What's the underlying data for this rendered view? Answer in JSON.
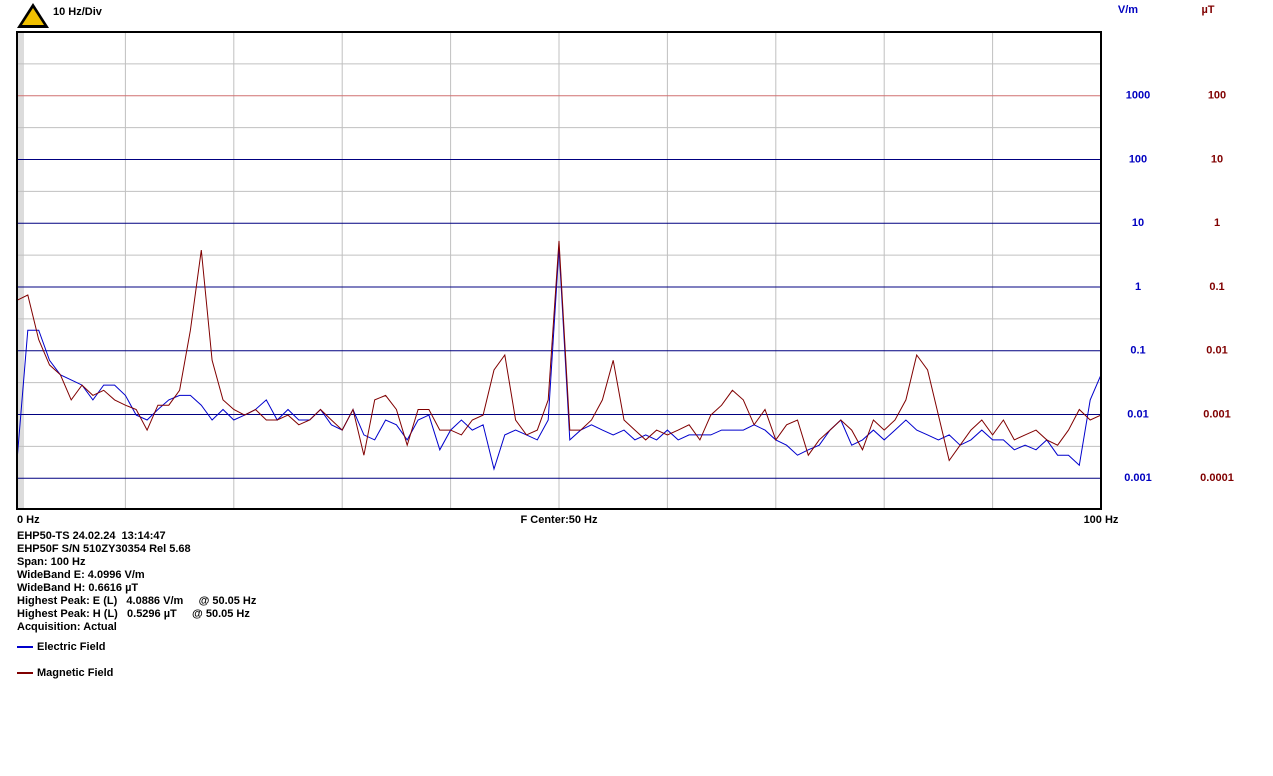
{
  "chart_data": {
    "type": "line",
    "title": "10 Hz/Div",
    "ylabel": "V/m",
    "y2label": "µT",
    "log_y": true,
    "xlim": [
      0,
      100
    ],
    "xticks": [
      {
        "value": 0,
        "label": "0 Hz"
      },
      {
        "value": 50,
        "label": "F Center:50 Hz"
      },
      {
        "value": 100,
        "label": "100 Hz"
      }
    ],
    "xgrid": [
      10,
      20,
      30,
      40,
      50,
      60,
      70,
      80,
      90
    ],
    "ylim": [
      0.00033,
      10000
    ],
    "yticks": [
      1000,
      100,
      10,
      1,
      0.1,
      0.01,
      0.001
    ],
    "y_minor_grid": [
      3162,
      316.2,
      31.62,
      3.162,
      0.3162,
      0.03162,
      0.003162
    ],
    "grid_colors": [
      "#d07070",
      "#000080",
      "#000080",
      "#000080",
      "#000080",
      "#000080",
      "#000080"
    ],
    "y2lim": [
      3.3e-05,
      1000
    ],
    "y2ticks": [
      100,
      10,
      1,
      0.1,
      0.01,
      0.001,
      0.0001
    ],
    "ytick_color": "#0000c0",
    "y2tick_color": "#800000",
    "x": [
      0,
      1,
      2,
      3,
      4,
      5,
      6,
      7,
      8,
      9,
      10,
      11,
      12,
      13,
      14,
      15,
      16,
      17,
      18,
      19,
      20,
      21,
      22,
      23,
      24,
      25,
      26,
      27,
      28,
      29,
      30,
      31,
      32,
      33,
      34,
      35,
      36,
      37,
      38,
      39,
      40,
      41,
      42,
      43,
      44,
      45,
      46,
      47,
      48,
      49,
      50,
      51,
      52,
      53,
      54,
      55,
      56,
      57,
      58,
      59,
      60,
      61,
      62,
      63,
      64,
      65,
      66,
      67,
      68,
      69,
      70,
      71,
      72,
      73,
      74,
      75,
      76,
      77,
      78,
      79,
      80,
      81,
      82,
      83,
      84,
      85,
      86,
      87,
      88,
      89,
      90,
      91,
      92,
      93,
      94,
      95,
      96,
      97,
      98,
      99,
      100
    ],
    "series": [
      {
        "name": "Electric Field",
        "color": "#0000cc",
        "values": [
          0.0019,
          0.21,
          0.21,
          0.071,
          0.042,
          0.035,
          0.029,
          0.017,
          0.029,
          0.029,
          0.02,
          0.0098,
          0.0082,
          0.012,
          0.017,
          0.02,
          0.02,
          0.014,
          0.0082,
          0.012,
          0.0082,
          0.0098,
          0.012,
          0.017,
          0.0082,
          0.012,
          0.0082,
          0.0082,
          0.012,
          0.0069,
          0.0057,
          0.012,
          0.0048,
          0.004,
          0.0082,
          0.0069,
          0.004,
          0.0082,
          0.0098,
          0.0028,
          0.0057,
          0.0082,
          0.0057,
          0.0069,
          0.0014,
          0.0048,
          0.0057,
          0.0048,
          0.004,
          0.0082,
          4.09,
          0.004,
          0.0057,
          0.0069,
          0.0057,
          0.0048,
          0.0057,
          0.004,
          0.0048,
          0.004,
          0.0057,
          0.004,
          0.0048,
          0.0048,
          0.0048,
          0.0057,
          0.0057,
          0.0057,
          0.0069,
          0.0057,
          0.004,
          0.0033,
          0.0023,
          0.0028,
          0.0033,
          0.0057,
          0.0082,
          0.0033,
          0.004,
          0.0057,
          0.004,
          0.0057,
          0.0082,
          0.0057,
          0.0048,
          0.004,
          0.0048,
          0.0033,
          0.004,
          0.0057,
          0.004,
          0.004,
          0.0028,
          0.0033,
          0.0028,
          0.004,
          0.0023,
          0.0023,
          0.0016,
          0.017,
          0.042
        ]
      },
      {
        "name": "Magnetic Field",
        "color": "#800000",
        "axis": "y2",
        "values": [
          0.062,
          0.075,
          0.015,
          0.006,
          0.0042,
          0.0017,
          0.0029,
          0.002,
          0.0024,
          0.0017,
          0.0014,
          0.0012,
          0.00057,
          0.0014,
          0.0014,
          0.0024,
          0.021,
          0.38,
          0.0071,
          0.0017,
          0.0012,
          0.00098,
          0.0012,
          0.00082,
          0.00082,
          0.00098,
          0.00069,
          0.00082,
          0.0012,
          0.00082,
          0.00057,
          0.0012,
          0.00023,
          0.0017,
          0.002,
          0.0012,
          0.00033,
          0.0012,
          0.0012,
          0.00057,
          0.00057,
          0.00048,
          0.00082,
          0.00098,
          0.005,
          0.0086,
          0.00082,
          0.00048,
          0.00057,
          0.0017,
          0.53,
          0.00057,
          0.00057,
          0.00082,
          0.0017,
          0.0071,
          0.00082,
          0.00057,
          0.0004,
          0.00057,
          0.00048,
          0.00057,
          0.00069,
          0.0004,
          0.00098,
          0.0014,
          0.0024,
          0.0017,
          0.00069,
          0.0012,
          0.0004,
          0.00069,
          0.00082,
          0.00023,
          0.0004,
          0.00057,
          0.00082,
          0.00057,
          0.00028,
          0.00082,
          0.00057,
          0.00082,
          0.0017,
          0.0086,
          0.005,
          0.00098,
          0.00019,
          0.00033,
          0.00057,
          0.00082,
          0.00048,
          0.00082,
          0.0004,
          0.00048,
          0.00057,
          0.0004,
          0.00033,
          0.00057,
          0.0012,
          0.00082,
          0.00098
        ]
      }
    ],
    "info": [
      "EHP50-TS 24.02.24  13:14:47",
      "EHP50F S/N 510ZY30354 Rel 5.68",
      "Span: 100 Hz",
      "WideBand E: 4.0996 V/m",
      "WideBand H: 0.6616 µT",
      "Highest Peak: E (L)   4.0886 V/m     @ 50.05 Hz",
      "Highest Peak: H (L)   0.5296 µT     @ 50.05 Hz",
      "Acquisition: Actual"
    ]
  }
}
